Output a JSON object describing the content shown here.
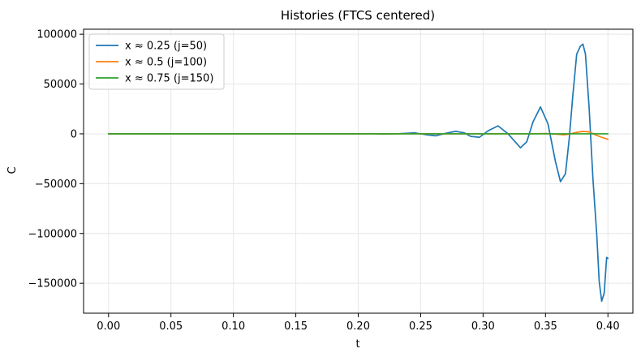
{
  "chart_data": {
    "type": "line",
    "title": "Histories (FTCS centered)",
    "xlabel": "t",
    "ylabel": "C",
    "xlim": [
      -0.02,
      0.42
    ],
    "ylim": [
      -180000,
      105000
    ],
    "xticks": [
      0.0,
      0.05,
      0.1,
      0.15,
      0.2,
      0.25,
      0.3,
      0.35,
      0.4
    ],
    "xtick_labels": [
      "0.00",
      "0.05",
      "0.10",
      "0.15",
      "0.20",
      "0.25",
      "0.30",
      "0.35",
      "0.40"
    ],
    "yticks": [
      -150000,
      -100000,
      -50000,
      0,
      50000,
      100000
    ],
    "ytick_labels": [
      "−150000",
      "−100000",
      "−50000",
      "0",
      "50000",
      "100000"
    ],
    "grid": true,
    "legend_position": "upper-left",
    "series": [
      {
        "name": "x ≈ 0.25 (j=50)",
        "color": "#1f77b4",
        "x": [
          0.0,
          0.1,
          0.2,
          0.21,
          0.22,
          0.23,
          0.235,
          0.245,
          0.255,
          0.262,
          0.27,
          0.278,
          0.285,
          0.29,
          0.297,
          0.304,
          0.312,
          0.32,
          0.325,
          0.33,
          0.335,
          0.34,
          0.346,
          0.352,
          0.358,
          0.362,
          0.366,
          0.369,
          0.372,
          0.375,
          0.378,
          0.38,
          0.382,
          0.385,
          0.388,
          0.391,
          0.393,
          0.395,
          0.397,
          0.399,
          0.4
        ],
        "y": [
          0,
          0,
          0,
          200,
          -300,
          0,
          300,
          1000,
          -1000,
          -2000,
          500,
          2500,
          1000,
          -2500,
          -3500,
          3000,
          8000,
          0,
          -7000,
          -14000,
          -8000,
          12000,
          27000,
          10000,
          -28000,
          -48000,
          -40000,
          -5000,
          40000,
          80000,
          88000,
          90000,
          80000,
          25000,
          -45000,
          -100000,
          -148000,
          -168000,
          -160000,
          -124000,
          -125000
        ]
      },
      {
        "name": "x ≈ 0.5 (j=100)",
        "color": "#ff7f0e",
        "x": [
          0.0,
          0.2,
          0.34,
          0.35,
          0.36,
          0.365,
          0.37,
          0.375,
          0.38,
          0.385,
          0.39,
          0.395,
          0.4
        ],
        "y": [
          0,
          0,
          0,
          300,
          -500,
          -1000,
          0,
          1500,
          2500,
          2000,
          -1000,
          -3500,
          -5500
        ]
      },
      {
        "name": "x ≈ 0.75 (j=150)",
        "color": "#2ca02c",
        "x": [
          0.0,
          0.1,
          0.2,
          0.3,
          0.4
        ],
        "y": [
          0,
          0,
          0,
          0,
          0
        ]
      }
    ]
  }
}
